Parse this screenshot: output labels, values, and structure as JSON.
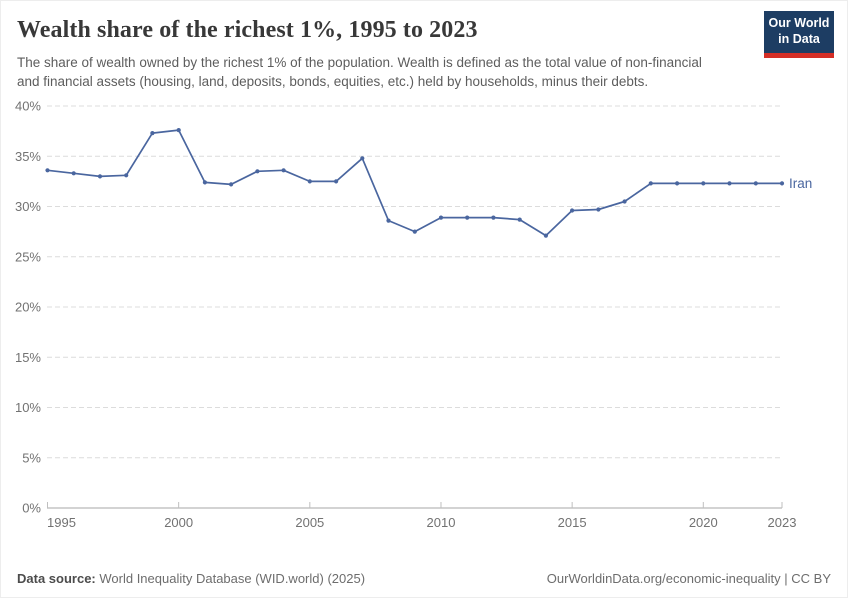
{
  "header": {
    "title": "Wealth share of the richest 1%, 1995 to 2023",
    "subtitle": "The share of wealth owned by the richest 1% of the population. Wealth is defined as the total value of non-financial and financial assets (housing, land, deposits, bonds, equities, etc.) held by households, minus their debts.",
    "logo": {
      "line1": "Our World",
      "line2": "in Data",
      "bg_color": "#1d3d63",
      "accent_color": "#d42e26"
    }
  },
  "chart_data": {
    "type": "line",
    "title": "Wealth share of the richest 1%, 1995 to 2023",
    "xlabel": "",
    "ylabel": "",
    "x": [
      1995,
      1996,
      1997,
      1998,
      1999,
      2000,
      2001,
      2002,
      2003,
      2004,
      2005,
      2006,
      2007,
      2008,
      2009,
      2010,
      2011,
      2012,
      2013,
      2014,
      2015,
      2016,
      2017,
      2018,
      2019,
      2020,
      2021,
      2022,
      2023
    ],
    "series": [
      {
        "name": "Iran",
        "color": "#4a669f",
        "values": [
          33.6,
          33.3,
          33.0,
          33.1,
          37.3,
          37.6,
          32.4,
          32.2,
          33.5,
          33.6,
          32.5,
          32.5,
          34.8,
          28.6,
          27.5,
          28.9,
          28.9,
          28.9,
          28.7,
          27.1,
          29.6,
          29.7,
          30.5,
          32.3,
          32.3,
          32.3,
          32.3,
          32.3,
          32.3
        ]
      }
    ],
    "xlim": [
      1995,
      2023
    ],
    "ylim": [
      0,
      40
    ],
    "x_ticks": [
      {
        "value": 1995,
        "label": "1995"
      },
      {
        "value": 2000,
        "label": "2000"
      },
      {
        "value": 2005,
        "label": "2005"
      },
      {
        "value": 2010,
        "label": "2010"
      },
      {
        "value": 2015,
        "label": "2015"
      },
      {
        "value": 2020,
        "label": "2020"
      },
      {
        "value": 2023,
        "label": "2023"
      }
    ],
    "y_ticks": [
      {
        "value": 0,
        "label": "0%"
      },
      {
        "value": 5,
        "label": "5%"
      },
      {
        "value": 10,
        "label": "10%"
      },
      {
        "value": 15,
        "label": "15%"
      },
      {
        "value": 20,
        "label": "20%"
      },
      {
        "value": 25,
        "label": "25%"
      },
      {
        "value": 30,
        "label": "30%"
      },
      {
        "value": 35,
        "label": "35%"
      },
      {
        "value": 40,
        "label": "40%"
      }
    ],
    "grid": "horizontal-dashed",
    "legend_position": "line-end-label",
    "y_tick_unit": "%"
  },
  "footer": {
    "datasource_label": "Data source:",
    "datasource_value": "World Inequality Database (WID.world) (2025)",
    "attribution": "OurWorldinData.org/economic-inequality | CC BY"
  }
}
